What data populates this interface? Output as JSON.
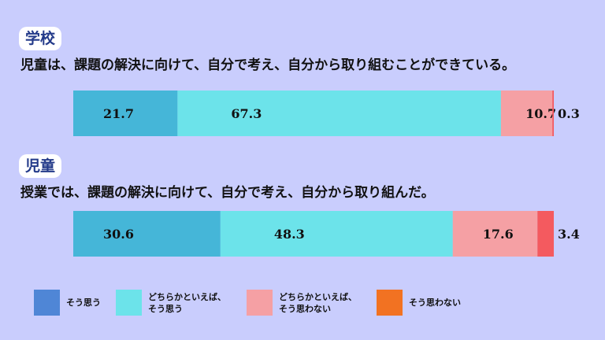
{
  "sections": [
    {
      "tag": "学校",
      "question": "児童は、課題の解決に向けて、自分で考え、自分から取り組むことができている。"
    },
    {
      "tag": "児童",
      "question": "授業では、課題の解決に向けて、自分で考え、自分から取り組んだ。"
    }
  ],
  "chart_data": {
    "type": "bar",
    "orientation": "horizontal-stacked-100",
    "categories": [
      "学校",
      "児童"
    ],
    "series": [
      {
        "name": "そう思う",
        "values": [
          21.7,
          30.6
        ]
      },
      {
        "name": "どちらかといえば、\nそう思う",
        "values": [
          67.3,
          48.3
        ]
      },
      {
        "name": "どちらかといえば、\nそう思わない",
        "values": [
          10.7,
          17.6
        ]
      },
      {
        "name": "そう思わない",
        "values": [
          0.3,
          3.4
        ]
      }
    ],
    "bar_colors": [
      "#45b6d8",
      "#6ce3ea",
      "#f5a0a4",
      "#f45a5f"
    ],
    "legend_colors": [
      "#4f86d6",
      "#6ce3ea",
      "#f5a0a4",
      "#f27222"
    ],
    "label_color": "#111111",
    "legend_position": "bottom"
  }
}
